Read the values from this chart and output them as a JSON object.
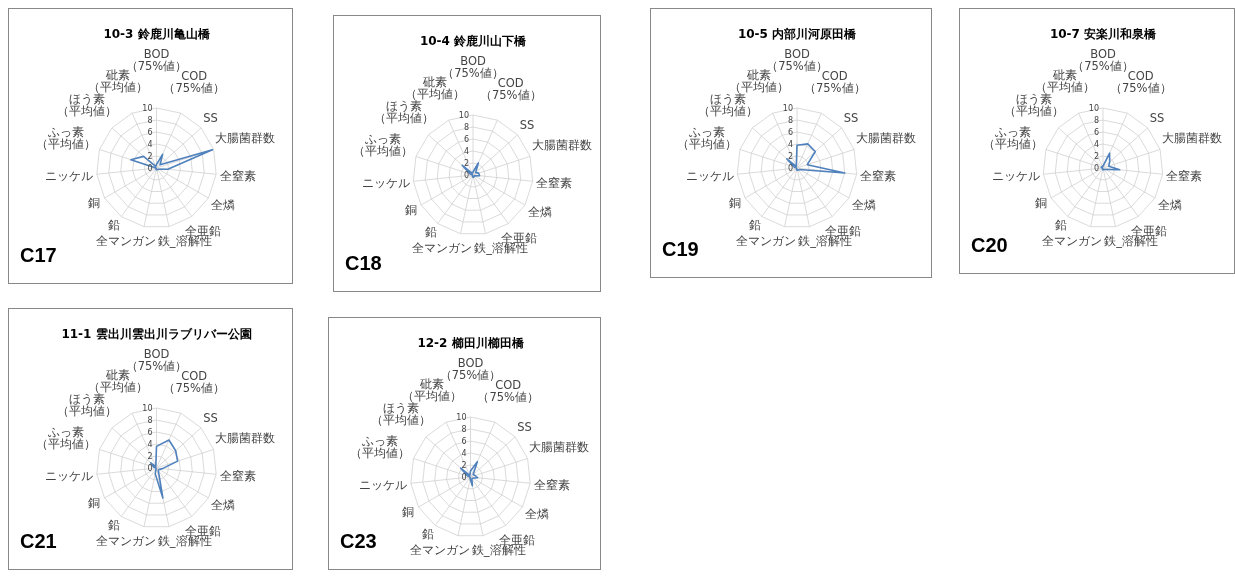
{
  "chart_data": [
    {
      "type": "radar",
      "title": "10-3 鈴鹿川亀山橋",
      "categories": [
        "BOD（75%値）",
        "COD（75%値）",
        "SS",
        "大腸菌群数",
        "全窒素",
        "全燐",
        "全亜鉛",
        "鉄_溶解性",
        "全マンガン",
        "鉛",
        "銅",
        "ニッケル",
        "ふっ素（平均値）",
        "ほう素（平均値）",
        "砒素（平均値）"
      ],
      "series": [
        {
          "color": "#4f81bd",
          "values": [
            0.6,
            2.5,
            0.8,
            9.8,
            1.9,
            0.4,
            0.3,
            0.3,
            0.3,
            0.1,
            0.1,
            0.1,
            4.5,
            2.9,
            0.3
          ]
        }
      ],
      "ylim": [
        0,
        10
      ],
      "yticks": [
        0,
        2,
        4,
        6,
        8,
        10
      ],
      "grid": true,
      "annotations": [
        "C17"
      ]
    },
    {
      "type": "radar",
      "title": "10-4 鈴鹿川山下橋",
      "categories": [
        "BOD（75%値）",
        "COD（75%値）",
        "SS",
        "大腸菌群数",
        "全窒素",
        "全燐",
        "全亜鉛",
        "鉄_溶解性",
        "全マンガン",
        "鉛",
        "銅",
        "ニッケル",
        "ふっ素（平均値）",
        "ほう素（平均値）",
        "砒素（平均値）"
      ],
      "series": [
        {
          "color": "#4f81bd",
          "values": [
            0.5,
            2.2,
            0.6,
            1.0,
            1.1,
            0.3,
            0.3,
            0.4,
            0.3,
            0.1,
            0.1,
            0.1,
            0.5,
            2.4,
            0.3
          ]
        }
      ],
      "ylim": [
        0,
        10
      ],
      "yticks": [
        0,
        2,
        4,
        6,
        8,
        10
      ],
      "grid": true,
      "annotations": [
        "C18"
      ]
    },
    {
      "type": "radar",
      "title": "10-5 内部川河原田橋",
      "categories": [
        "BOD（75%値）",
        "COD（75%値）",
        "SS",
        "大腸菌群数",
        "全窒素",
        "全燐",
        "全亜鉛",
        "鉄_溶解性",
        "全マンガン",
        "鉛",
        "銅",
        "ニッケル",
        "ふっ素（平均値）",
        "ほう素（平均値）",
        "砒素（平均値）"
      ],
      "series": [
        {
          "color": "#4f81bd",
          "values": [
            3.8,
            4.4,
            4.1,
            1.8,
            8.0,
            0.5,
            0.4,
            0.4,
            0.3,
            0.1,
            0.1,
            0.1,
            0.5,
            2.3,
            0.3
          ]
        }
      ],
      "ylim": [
        0,
        10
      ],
      "yticks": [
        0,
        2,
        4,
        6,
        8,
        10
      ],
      "grid": true,
      "annotations": [
        "C19"
      ]
    },
    {
      "type": "radar",
      "title": "10-7 安楽川和泉橋",
      "categories": [
        "BOD（75%値）",
        "COD（75%値）",
        "SS",
        "大腸菌群数",
        "全窒素",
        "全燐",
        "全亜鉛",
        "鉄_溶解性",
        "全マンガン",
        "鉛",
        "銅",
        "ニッケル",
        "ふっ素（平均値）",
        "ほう素（平均値）",
        "砒素（平均値）"
      ],
      "series": [
        {
          "color": "#4f81bd",
          "values": [
            0.3,
            2.7,
            1.5,
            1.0,
            2.8,
            0.5,
            0.3,
            0.3,
            0.3,
            0.1,
            0.1,
            0.1,
            0.3,
            0.3,
            0.3
          ]
        }
      ],
      "ylim": [
        0,
        10
      ],
      "yticks": [
        0,
        2,
        4,
        6,
        8,
        10
      ],
      "grid": true,
      "annotations": [
        "C20"
      ]
    },
    {
      "type": "radar",
      "title": "11-1 雲出川雲出川ラブリバー公園",
      "categories": [
        "BOD（75%値）",
        "COD（75%値）",
        "SS",
        "大腸菌群数",
        "全窒素",
        "全燐",
        "全亜鉛",
        "鉄_溶解性",
        "全マンガン",
        "鉛",
        "銅",
        "ニッケル",
        "ふっ素（平均値）",
        "ほう素（平均値）",
        "砒素（平均値）"
      ],
      "series": [
        {
          "color": "#4f81bd",
          "values": [
            3.6,
            5.1,
            4.3,
            3.7,
            1.0,
            0.5,
            0.5,
            5.1,
            1.0,
            0.1,
            0.1,
            0.1,
            0.5,
            1.3,
            0.3
          ]
        }
      ],
      "ylim": [
        0,
        10
      ],
      "yticks": [
        0,
        2,
        4,
        6,
        8,
        10
      ],
      "grid": true,
      "annotations": [
        "C21"
      ]
    },
    {
      "type": "radar",
      "title": "12-2 櫛田川櫛田橋",
      "categories": [
        "BOD（75%値）",
        "COD（75%値）",
        "SS",
        "大腸菌群数",
        "全窒素",
        "全燐",
        "全亜鉛",
        "鉄_溶解性",
        "全マンガン",
        "鉛",
        "銅",
        "ニッケル",
        "ふっ素（平均値）",
        "ほう素（平均値）",
        "砒素（平均値）"
      ],
      "series": [
        {
          "color": "#4f81bd",
          "values": [
            1.0,
            2.8,
            0.6,
            0.8,
            1.2,
            0.4,
            0.4,
            1.5,
            0.3,
            0.1,
            0.1,
            0.1,
            0.5,
            2.2,
            0.3
          ]
        }
      ],
      "ylim": [
        0,
        10
      ],
      "yticks": [
        0,
        2,
        4,
        6,
        8,
        10
      ],
      "grid": true,
      "annotations": [
        "C23"
      ]
    }
  ]
}
